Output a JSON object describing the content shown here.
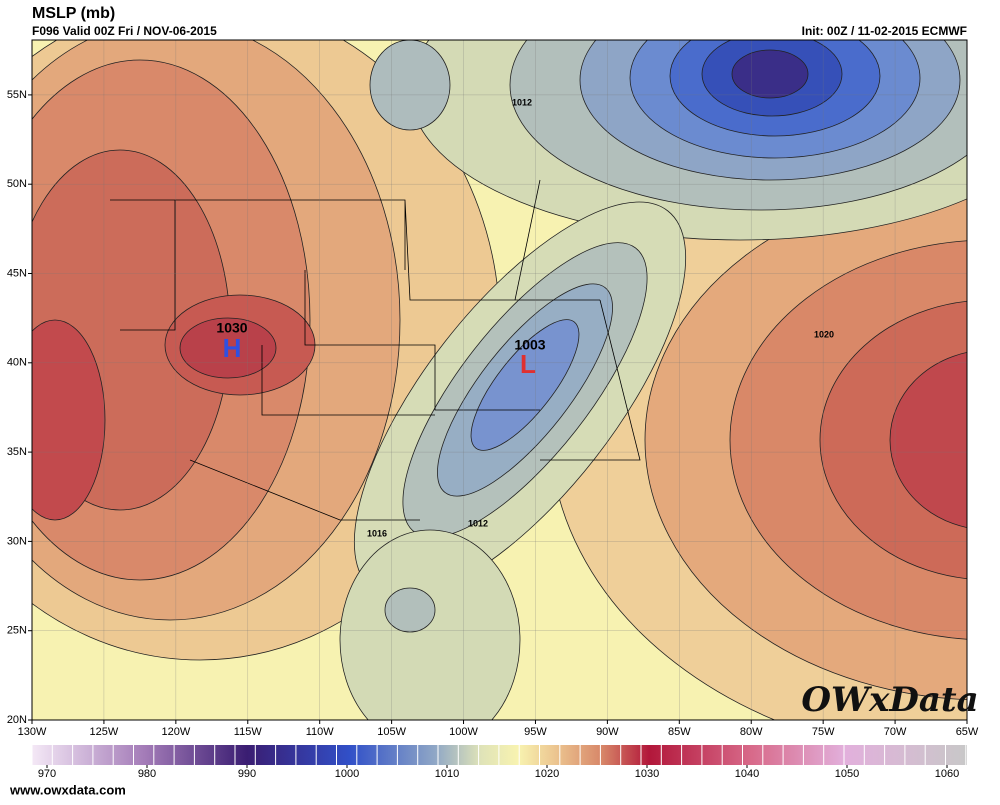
{
  "header": {
    "title": "MSLP (mb)",
    "valid": "F096 Valid 00Z Fri / NOV-06-2015",
    "init": "Init: 00Z / 11-02-2015 ECMWF"
  },
  "map": {
    "lon_labels": [
      "130W",
      "125W",
      "120W",
      "115W",
      "110W",
      "105W",
      "100W",
      "95W",
      "90W",
      "85W",
      "80W",
      "75W",
      "70W",
      "65W"
    ],
    "lat_labels": [
      "55N",
      "50N",
      "45N",
      "40N",
      "35N",
      "30N",
      "25N",
      "20N"
    ],
    "contour_labels": [
      "1012",
      "1003",
      "1030",
      "1012",
      "1016",
      "1020"
    ],
    "highs": [
      "H"
    ],
    "lows": [
      "L"
    ]
  },
  "colorbar": {
    "range": [
      968.5,
      1062
    ],
    "ticks": [
      970,
      980,
      990,
      1000,
      1010,
      1020,
      1030,
      1040,
      1050,
      1060
    ]
  },
  "footer": {
    "url": "www.owxdata.com",
    "logo": "OWxData"
  }
}
